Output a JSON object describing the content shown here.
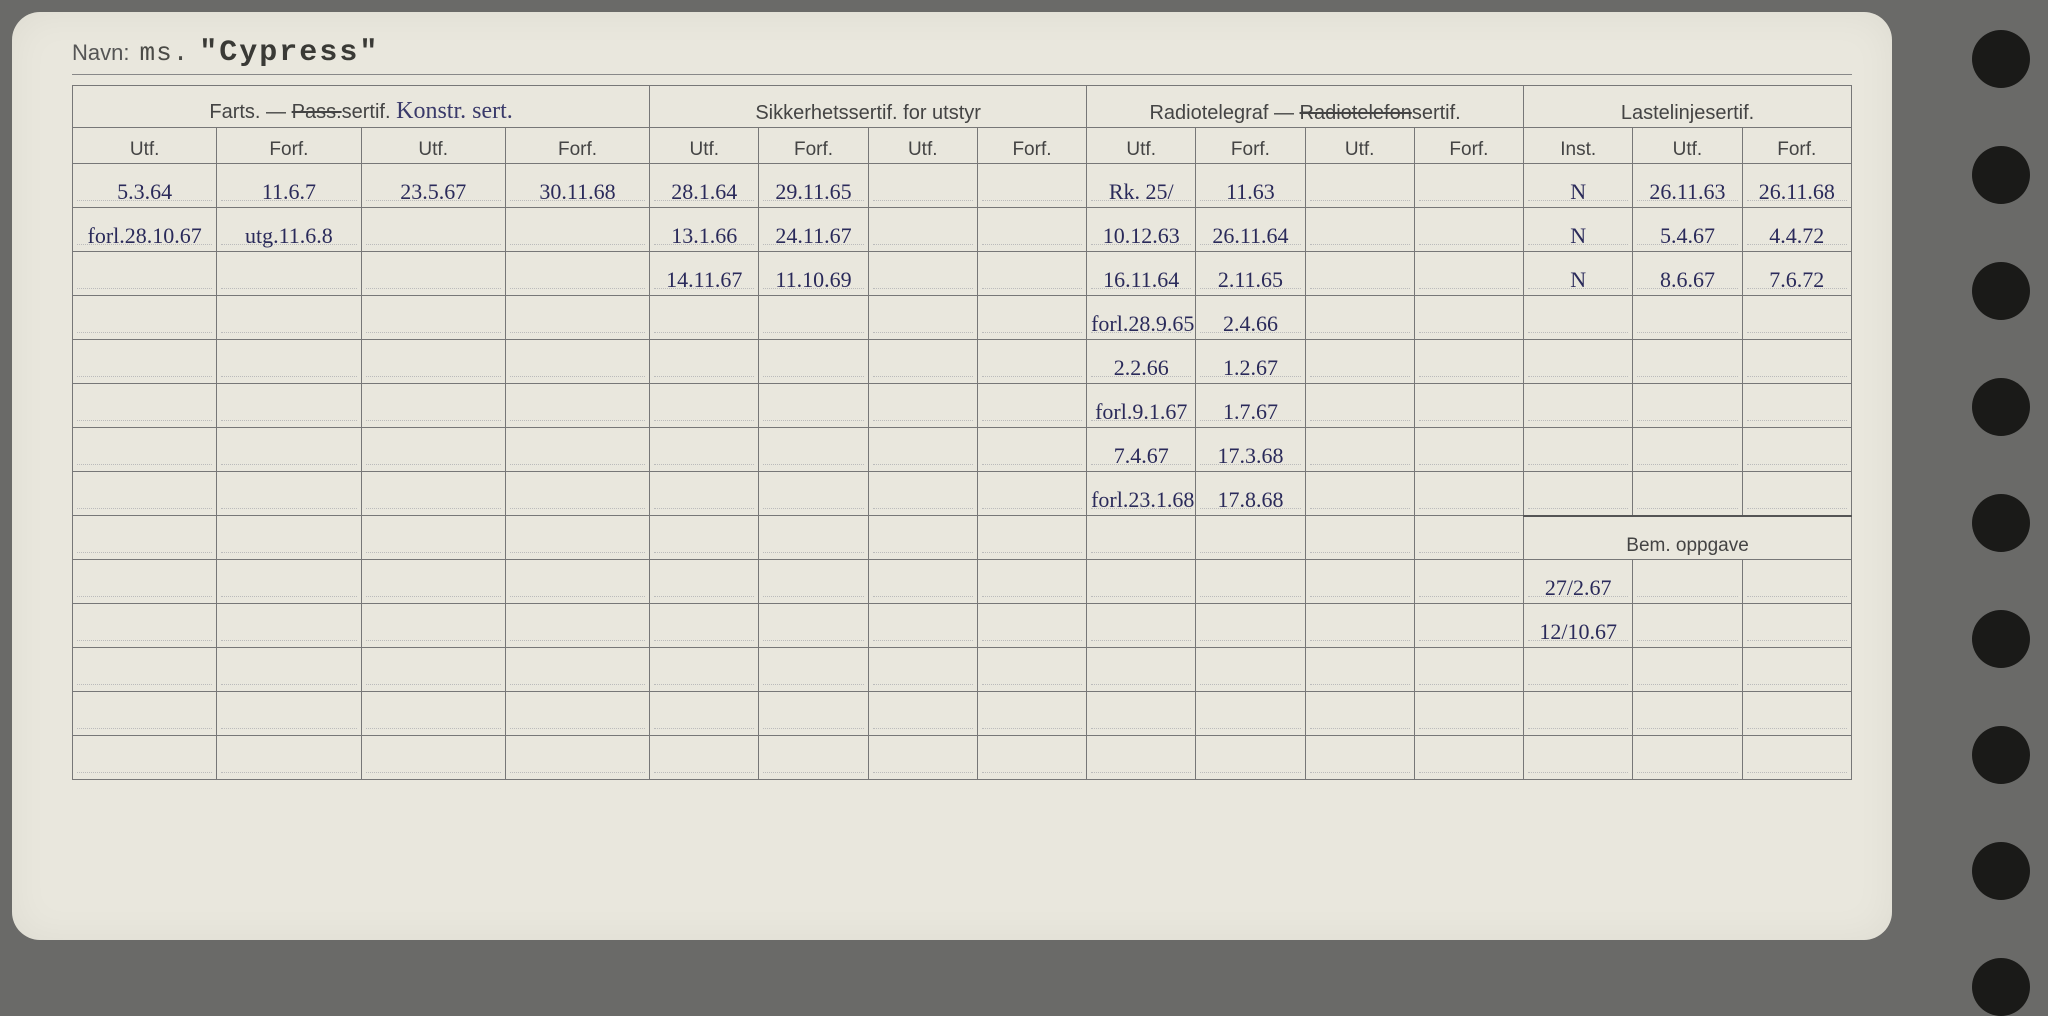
{
  "background_color": "#6a6a68",
  "card_color": "#e9e7dd",
  "ink_color": "#2a2a5a",
  "print_color": "#444444",
  "hole_count": 9,
  "navn": {
    "label": "Navn:",
    "prefix": "ms.",
    "name": "\"Cypress\""
  },
  "groups": {
    "g1": {
      "title_pre": "Farts. — ",
      "title_strike": "Pass.",
      "title_post": "sertif.",
      "script": "Konstr. sert."
    },
    "g2": "Sikkerhetssertif. for utstyr",
    "g3": {
      "title_pre": "Radiotelegraf — ",
      "title_strike": "Radiotelefon",
      "title_post": "sertif."
    },
    "g4": "Lastelinjesertif.",
    "g5": "Bem. oppgave"
  },
  "sub": {
    "utf": "Utf.",
    "forf": "Forf.",
    "inst": "Inst."
  },
  "rows": [
    {
      "c": [
        "5.3.64",
        "11.6.7",
        "23.5.67",
        "30.11.68",
        "28.1.64",
        "29.11.65",
        "",
        "",
        "Rk. 25/",
        "11.63",
        "",
        "",
        "N",
        "26.11.63",
        "26.11.68"
      ]
    },
    {
      "c": [
        "forl.28.10.67",
        "utg.11.6.8",
        "",
        "",
        "13.1.66",
        "24.11.67",
        "",
        "",
        "10.12.63",
        "26.11.64",
        "",
        "",
        "N",
        "5.4.67",
        "4.4.72"
      ]
    },
    {
      "c": [
        "",
        "",
        "",
        "",
        "14.11.67",
        "11.10.69",
        "",
        "",
        "16.11.64",
        "2.11.65",
        "",
        "",
        "N",
        "8.6.67",
        "7.6.72"
      ]
    },
    {
      "c": [
        "",
        "",
        "",
        "",
        "",
        "",
        "",
        "",
        "forl.28.9.65",
        "2.4.66",
        "",
        "",
        "",
        "",
        ""
      ]
    },
    {
      "c": [
        "",
        "",
        "",
        "",
        "",
        "",
        "",
        "",
        "2.2.66",
        "1.2.67",
        "",
        "",
        "",
        "",
        ""
      ]
    },
    {
      "c": [
        "",
        "",
        "",
        "",
        "",
        "",
        "",
        "",
        "forl.9.1.67",
        "1.7.67",
        "",
        "",
        "",
        "",
        ""
      ]
    },
    {
      "c": [
        "",
        "",
        "",
        "",
        "",
        "",
        "",
        "",
        "7.4.67",
        "17.3.68",
        "",
        "",
        "",
        "",
        ""
      ]
    },
    {
      "c": [
        "",
        "",
        "",
        "",
        "",
        "",
        "",
        "",
        "forl.23.1.68",
        "17.8.68",
        "",
        "",
        "",
        "",
        ""
      ]
    }
  ],
  "bem_rows": [
    "27/2.67",
    "12/10.67",
    "",
    "",
    ""
  ],
  "extra_body_rows": 5
}
